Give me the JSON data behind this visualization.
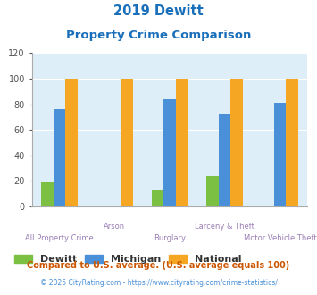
{
  "title_line1": "2019 Dewitt",
  "title_line2": "Property Crime Comparison",
  "categories": [
    "All Property Crime",
    "Arson",
    "Burglary",
    "Larceny & Theft",
    "Motor Vehicle Theft"
  ],
  "series": {
    "Dewitt": [
      19,
      0,
      13,
      24,
      0
    ],
    "Michigan": [
      76,
      0,
      84,
      73,
      81
    ],
    "National": [
      100,
      100,
      100,
      100,
      100
    ]
  },
  "colors": {
    "Dewitt": "#7bc043",
    "Michigan": "#4a90d9",
    "National": "#f5a623"
  },
  "ylim": [
    0,
    120
  ],
  "yticks": [
    0,
    20,
    40,
    60,
    80,
    100,
    120
  ],
  "title_color": "#1a6fba",
  "xlabel_color_row1": "#9b7fb6",
  "xlabel_color_row2": "#9b7fb6",
  "legend_label_color": "#333333",
  "footnote1": "Compared to U.S. average. (U.S. average equals 100)",
  "footnote2": "© 2025 CityRating.com - https://www.cityrating.com/crime-statistics/",
  "footnote1_color": "#cc5500",
  "footnote2_color": "#4a90d9",
  "bg_color": "#ffffff",
  "plot_bg_color": "#ddeef8",
  "bar_width": 0.22,
  "row2_indices": [
    1,
    3
  ],
  "row1_indices": [
    0,
    2,
    4
  ]
}
